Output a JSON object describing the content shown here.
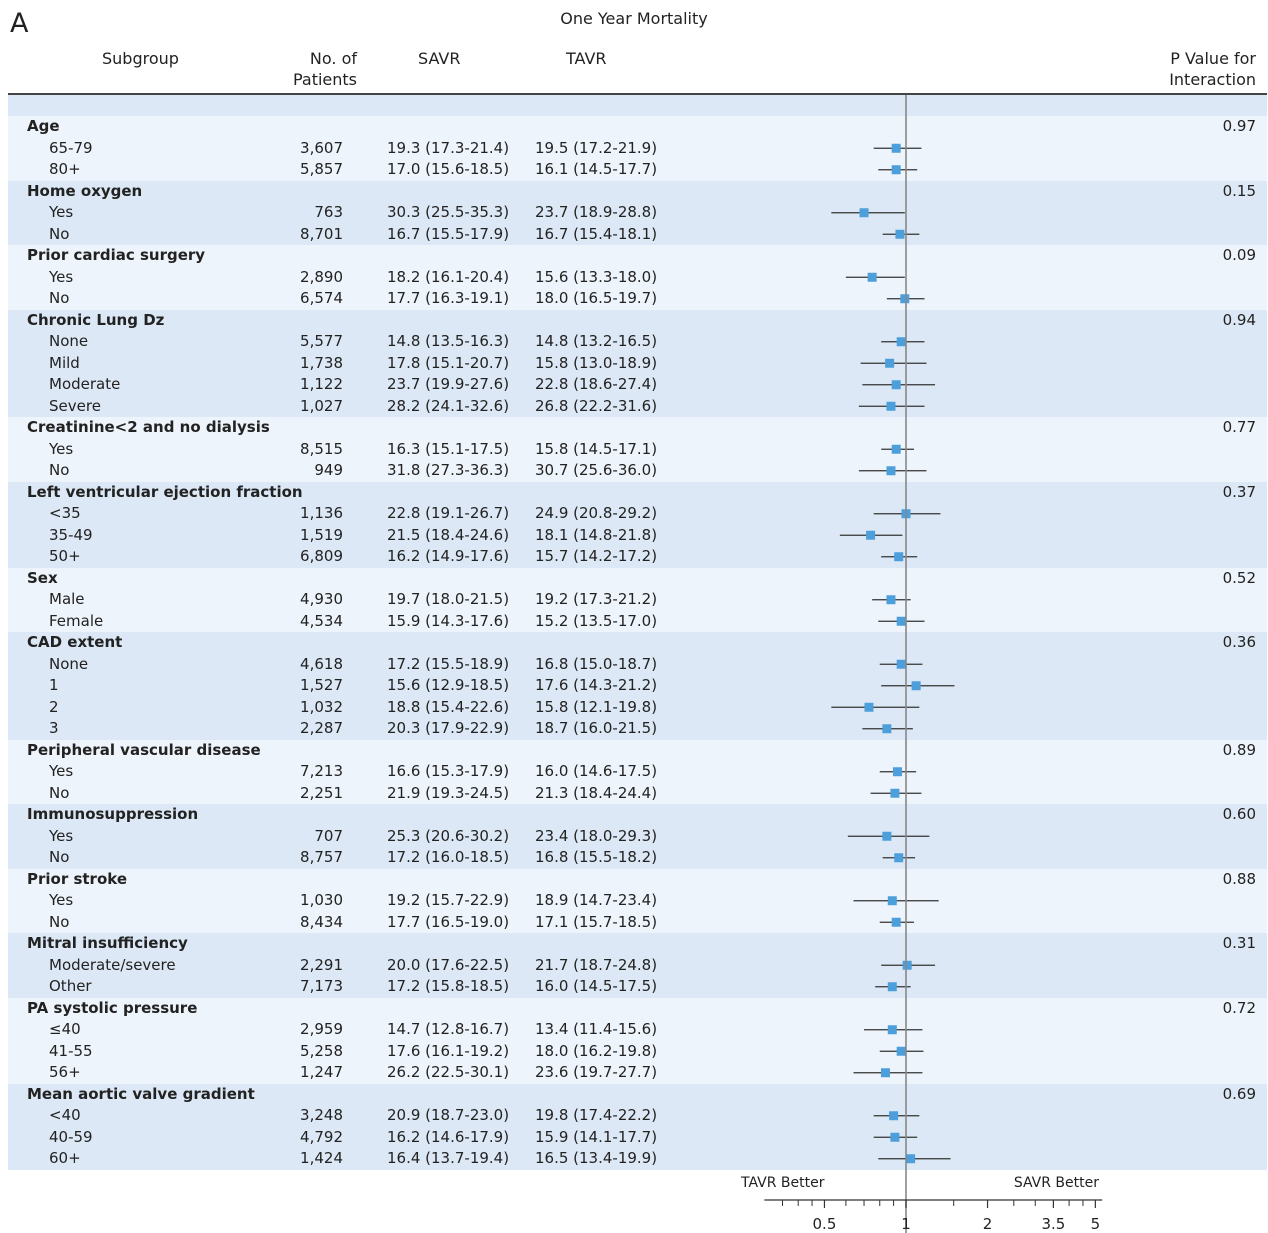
{
  "panel_label": "A",
  "chart_data": {
    "type": "forest",
    "title": "One Year Mortality",
    "x_scale": "log",
    "x_ticks": [
      "0.5",
      "1",
      "2",
      "3.5",
      "5"
    ],
    "x_tick_values": [
      0.5,
      1,
      2,
      3.5,
      5
    ],
    "xlim": [
      0.3,
      5.3
    ],
    "left_label": "TAVR Better",
    "right_label": "SAVR Better",
    "columns": {
      "subgroup": "Subgroup",
      "n": "No. of Patients",
      "savr": "SAVR",
      "tavr": "TAVR",
      "p": "P Value for Interaction"
    },
    "rows": [
      {
        "label": "Age",
        "header": true,
        "p": "0.97"
      },
      {
        "label": "65-79",
        "n": "3,607",
        "savr": "19.3 (17.3-21.4)",
        "tavr": "19.5 (17.2-21.9)",
        "est": 0.92,
        "lo": 0.76,
        "hi": 1.14
      },
      {
        "label": "80+",
        "n": "5,857",
        "savr": "17.0 (15.6-18.5)",
        "tavr": "16.1 (14.5-17.7)",
        "est": 0.92,
        "lo": 0.79,
        "hi": 1.1
      },
      {
        "label": "Home oxygen",
        "header": true,
        "p": "0.15"
      },
      {
        "label": "Yes",
        "n": "763",
        "savr": "30.3 (25.5-35.3)",
        "tavr": "23.7 (18.9-28.8)",
        "est": 0.7,
        "lo": 0.53,
        "hi": 0.99
      },
      {
        "label": "No",
        "n": "8,701",
        "savr": "16.7 (15.5-17.9)",
        "tavr": "16.7 (15.4-18.1)",
        "est": 0.95,
        "lo": 0.82,
        "hi": 1.12
      },
      {
        "label": "Prior cardiac surgery",
        "header": true,
        "p": "0.09"
      },
      {
        "label": "Yes",
        "n": "2,890",
        "savr": "18.2 (16.1-20.4)",
        "tavr": "15.6 (13.3-18.0)",
        "est": 0.75,
        "lo": 0.6,
        "hi": 0.99
      },
      {
        "label": "No",
        "n": "6,574",
        "savr": "17.7 (16.3-19.1)",
        "tavr": "18.0 (16.5-19.7)",
        "est": 0.99,
        "lo": 0.85,
        "hi": 1.17
      },
      {
        "label": "Chronic Lung Dz",
        "header": true,
        "p": "0.94"
      },
      {
        "label": "None",
        "n": "5,577",
        "savr": "14.8 (13.5-16.3)",
        "tavr": "14.8 (13.2-16.5)",
        "est": 0.96,
        "lo": 0.81,
        "hi": 1.17
      },
      {
        "label": "Mild",
        "n": "1,738",
        "savr": "17.8 (15.1-20.7)",
        "tavr": "15.8 (13.0-18.9)",
        "est": 0.87,
        "lo": 0.68,
        "hi": 1.19
      },
      {
        "label": "Moderate",
        "n": "1,122",
        "savr": "23.7 (19.9-27.6)",
        "tavr": "22.8 (18.6-27.4)",
        "est": 0.92,
        "lo": 0.69,
        "hi": 1.28
      },
      {
        "label": "Severe",
        "n": "1,027",
        "savr": "28.2 (24.1-32.6)",
        "tavr": "26.8 (22.2-31.6)",
        "est": 0.88,
        "lo": 0.67,
        "hi": 1.17
      },
      {
        "label": "Creatinine<2 and no dialysis",
        "header": true,
        "p": "0.77"
      },
      {
        "label": "Yes",
        "n": "8,515",
        "savr": "16.3 (15.1-17.5)",
        "tavr": "15.8 (14.5-17.1)",
        "est": 0.92,
        "lo": 0.81,
        "hi": 1.07
      },
      {
        "label": "No",
        "n": "949",
        "savr": "31.8 (27.3-36.3)",
        "tavr": "30.7 (25.6-36.0)",
        "est": 0.88,
        "lo": 0.67,
        "hi": 1.19
      },
      {
        "label": "Left ventricular ejection fraction",
        "header": true,
        "p": "0.37"
      },
      {
        "label": "<35",
        "n": "1,136",
        "savr": "22.8 (19.1-26.7)",
        "tavr": "24.9 (20.8-29.2)",
        "est": 1.0,
        "lo": 0.76,
        "hi": 1.34
      },
      {
        "label": "35-49",
        "n": "1,519",
        "savr": "21.5 (18.4-24.6)",
        "tavr": "18.1 (14.8-21.8)",
        "est": 0.74,
        "lo": 0.57,
        "hi": 0.97
      },
      {
        "label": "50+",
        "n": "6,809",
        "savr": "16.2 (14.9-17.6)",
        "tavr": "15.7 (14.2-17.2)",
        "est": 0.94,
        "lo": 0.81,
        "hi": 1.1
      },
      {
        "label": "Sex",
        "header": true,
        "p": "0.52"
      },
      {
        "label": "Male",
        "n": "4,930",
        "savr": "19.7 (18.0-21.5)",
        "tavr": "19.2 (17.3-21.2)",
        "est": 0.88,
        "lo": 0.75,
        "hi": 1.04
      },
      {
        "label": "Female",
        "n": "4,534",
        "savr": "15.9 (14.3-17.6)",
        "tavr": "15.2 (13.5-17.0)",
        "est": 0.96,
        "lo": 0.79,
        "hi": 1.17
      },
      {
        "label": "CAD extent",
        "header": true,
        "p": "0.36"
      },
      {
        "label": "None",
        "n": "4,618",
        "savr": "17.2 (15.5-18.9)",
        "tavr": "16.8 (15.0-18.7)",
        "est": 0.96,
        "lo": 0.8,
        "hi": 1.15
      },
      {
        "label": "1",
        "n": "1,527",
        "savr": "15.6 (12.9-18.5)",
        "tavr": "17.6 (14.3-21.2)",
        "est": 1.09,
        "lo": 0.81,
        "hi": 1.51
      },
      {
        "label": "2",
        "n": "1,032",
        "savr": "18.8 (15.4-22.6)",
        "tavr": "15.8 (12.1-19.8)",
        "est": 0.73,
        "lo": 0.53,
        "hi": 1.12
      },
      {
        "label": "3",
        "n": "2,287",
        "savr": "20.3 (17.9-22.9)",
        "tavr": "18.7 (16.0-21.5)",
        "est": 0.85,
        "lo": 0.69,
        "hi": 1.06
      },
      {
        "label": "Peripheral vascular disease",
        "header": true,
        "p": "0.89"
      },
      {
        "label": "Yes",
        "n": "7,213",
        "savr": "16.6 (15.3-17.9)",
        "tavr": "16.0 (14.6-17.5)",
        "est": 0.93,
        "lo": 0.8,
        "hi": 1.09
      },
      {
        "label": "No",
        "n": "2,251",
        "savr": "21.9 (19.3-24.5)",
        "tavr": "21.3 (18.4-24.4)",
        "est": 0.91,
        "lo": 0.74,
        "hi": 1.14
      },
      {
        "label": "Immunosuppression",
        "header": true,
        "p": "0.60"
      },
      {
        "label": "Yes",
        "n": "707",
        "savr": "25.3 (20.6-30.2)",
        "tavr": "23.4 (18.0-29.3)",
        "est": 0.85,
        "lo": 0.61,
        "hi": 1.22
      },
      {
        "label": "No",
        "n": "8,757",
        "savr": "17.2 (16.0-18.5)",
        "tavr": "16.8 (15.5-18.2)",
        "est": 0.94,
        "lo": 0.82,
        "hi": 1.08
      },
      {
        "label": "Prior stroke",
        "header": true,
        "p": "0.88"
      },
      {
        "label": "Yes",
        "n": "1,030",
        "savr": "19.2 (15.7-22.9)",
        "tavr": "18.9 (14.7-23.4)",
        "est": 0.89,
        "lo": 0.64,
        "hi": 1.32
      },
      {
        "label": "No",
        "n": "8,434",
        "savr": "17.7 (16.5-19.0)",
        "tavr": "17.1 (15.7-18.5)",
        "est": 0.92,
        "lo": 0.8,
        "hi": 1.07
      },
      {
        "label": "Mitral insufficiency",
        "header": true,
        "p": "0.31"
      },
      {
        "label": "Moderate/severe",
        "n": "2,291",
        "savr": "20.0 (17.6-22.5)",
        "tavr": "21.7 (18.7-24.8)",
        "est": 1.01,
        "lo": 0.81,
        "hi": 1.28
      },
      {
        "label": "Other",
        "n": "7,173",
        "savr": "17.2 (15.8-18.5)",
        "tavr": "16.0 (14.5-17.5)",
        "est": 0.89,
        "lo": 0.77,
        "hi": 1.04
      },
      {
        "label": "PA systolic pressure",
        "header": true,
        "p": "0.72"
      },
      {
        "label": "≤40",
        "n": "2,959",
        "savr": "14.7 (12.8-16.7)",
        "tavr": "13.4 (11.4-15.6)",
        "est": 0.89,
        "lo": 0.7,
        "hi": 1.15
      },
      {
        "label": "41-55",
        "n": "5,258",
        "savr": "17.6 (16.1-19.2)",
        "tavr": "18.0 (16.2-19.8)",
        "est": 0.96,
        "lo": 0.8,
        "hi": 1.16
      },
      {
        "label": "56+",
        "n": "1,247",
        "savr": "26.2 (22.5-30.1)",
        "tavr": "23.6 (19.7-27.7)",
        "est": 0.84,
        "lo": 0.64,
        "hi": 1.15
      },
      {
        "label": "Mean aortic valve gradient",
        "header": true,
        "p": "0.69"
      },
      {
        "label": "<40",
        "n": "3,248",
        "savr": "20.9 (18.7-23.0)",
        "tavr": "19.8 (17.4-22.2)",
        "est": 0.9,
        "lo": 0.76,
        "hi": 1.12
      },
      {
        "label": "40-59",
        "n": "4,792",
        "savr": "16.2 (14.6-17.9)",
        "tavr": "15.9 (14.1-17.7)",
        "est": 0.91,
        "lo": 0.76,
        "hi": 1.1
      },
      {
        "label": "60+",
        "n": "1,424",
        "savr": "16.4 (13.7-19.4)",
        "tavr": "16.5 (13.4-19.9)",
        "est": 1.04,
        "lo": 0.79,
        "hi": 1.46
      }
    ]
  },
  "colors": {
    "band_light": "#eef4fb",
    "band_dark": "#dce8f5",
    "marker": "#4d9fdc",
    "line": "#333333"
  }
}
